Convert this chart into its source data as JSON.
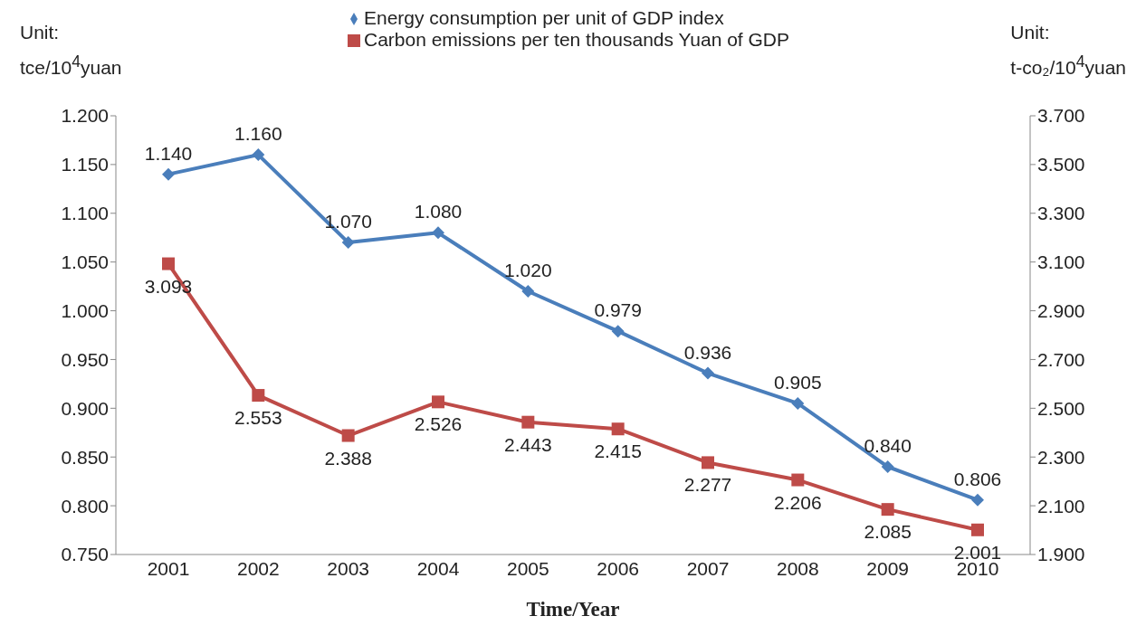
{
  "chart_data": {
    "type": "line",
    "categories": [
      "2001",
      "2002",
      "2003",
      "2004",
      "2005",
      "2006",
      "2007",
      "2008",
      "2009",
      "2010"
    ],
    "series": [
      {
        "name": "Energy consumption per unit of GDP index",
        "color": "#4a7ebb",
        "marker": "diamond",
        "values": [
          1.14,
          1.16,
          1.07,
          1.08,
          1.02,
          0.979,
          0.936,
          0.905,
          0.84,
          0.806
        ],
        "value_labels": [
          "1.140",
          "1.160",
          "1.070",
          "1.080",
          "1.020",
          "0.979",
          "0.936",
          "0.905",
          "0.840",
          "0.806"
        ]
      },
      {
        "name": "Carbon emissions per ten thousands Yuan of GDP",
        "color": "#be4b48",
        "marker": "square",
        "axis": "y2",
        "values": [
          3.093,
          2.553,
          2.388,
          2.526,
          2.443,
          2.415,
          2.277,
          2.206,
          2.085,
          2.001
        ],
        "value_labels": [
          "3.093",
          "2.553",
          "2.388",
          "2.526",
          "2.443",
          "2.415",
          "2.277",
          "2.206",
          "2.085",
          "2.001"
        ]
      }
    ],
    "xlabel": "Time/Year",
    "ylabel": "Unit:\ntce/10$^{4}$yuan",
    "y2label": "Unit:\nt-co₂/10$^{4}$yuan",
    "ylim": [
      0.75,
      1.2
    ],
    "yticks": [
      {
        "value": 0.75,
        "label": "0.750"
      },
      {
        "value": 0.8,
        "label": "0.800"
      },
      {
        "value": 0.85,
        "label": "0.850"
      },
      {
        "value": 0.9,
        "label": "0.900"
      },
      {
        "value": 0.95,
        "label": "0.950"
      },
      {
        "value": 1.0,
        "label": "1.000"
      },
      {
        "value": 1.05,
        "label": "1.050"
      },
      {
        "value": 1.1,
        "label": "1.100"
      },
      {
        "value": 1.15,
        "label": "1.150"
      },
      {
        "value": 1.2,
        "label": "1.200"
      }
    ],
    "y2lim": [
      1.9,
      3.7
    ],
    "y2ticks": [
      {
        "value": 1.9,
        "label": "1.900"
      },
      {
        "value": 2.1,
        "label": "2.100"
      },
      {
        "value": 2.3,
        "label": "2.300"
      },
      {
        "value": 2.5,
        "label": "2.500"
      },
      {
        "value": 2.7,
        "label": "2.700"
      },
      {
        "value": 2.9,
        "label": "2.900"
      },
      {
        "value": 3.1,
        "label": "3.100"
      },
      {
        "value": 3.3,
        "label": "3.300"
      },
      {
        "value": 3.5,
        "label": "3.500"
      },
      {
        "value": 3.7,
        "label": "3.700"
      }
    ],
    "grid": false,
    "legend": "top"
  }
}
